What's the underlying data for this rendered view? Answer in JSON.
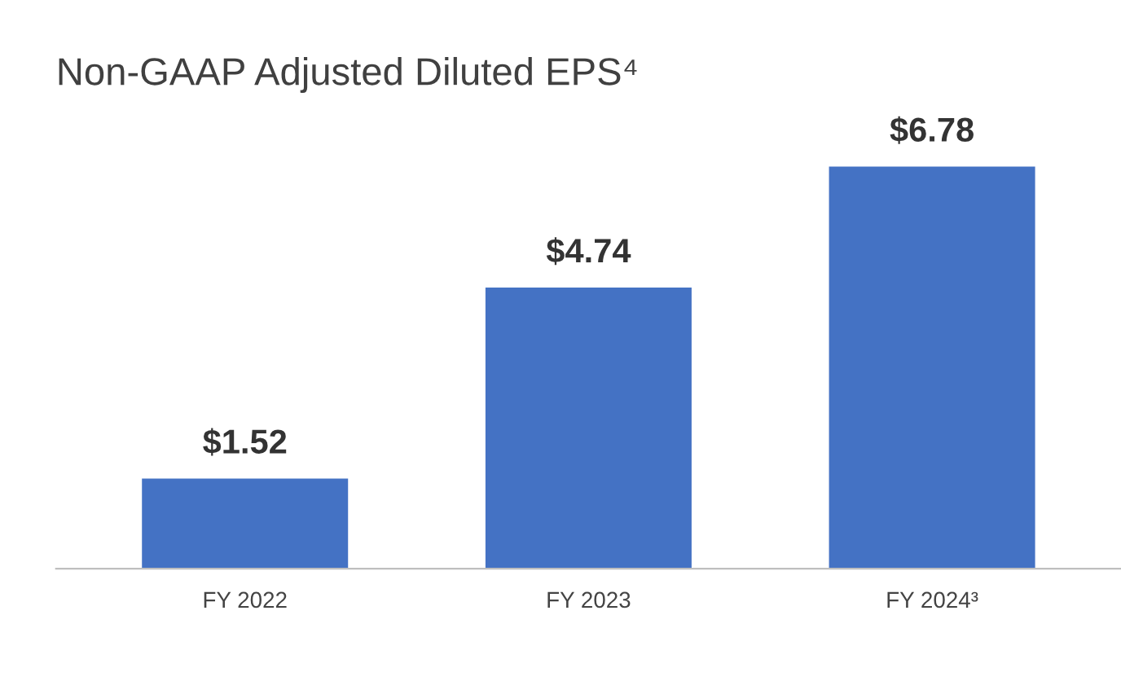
{
  "chart_data": {
    "type": "bar",
    "title": "Non-GAAP Adjusted Diluted EPS⁴",
    "categories": [
      "FY 2022",
      "FY 2023",
      "FY 2024³"
    ],
    "values": [
      1.52,
      4.74,
      6.78
    ],
    "value_labels": [
      "$1.52",
      "$4.74",
      "$6.78"
    ],
    "color": "#4472c4",
    "grid": false,
    "legend": false
  }
}
